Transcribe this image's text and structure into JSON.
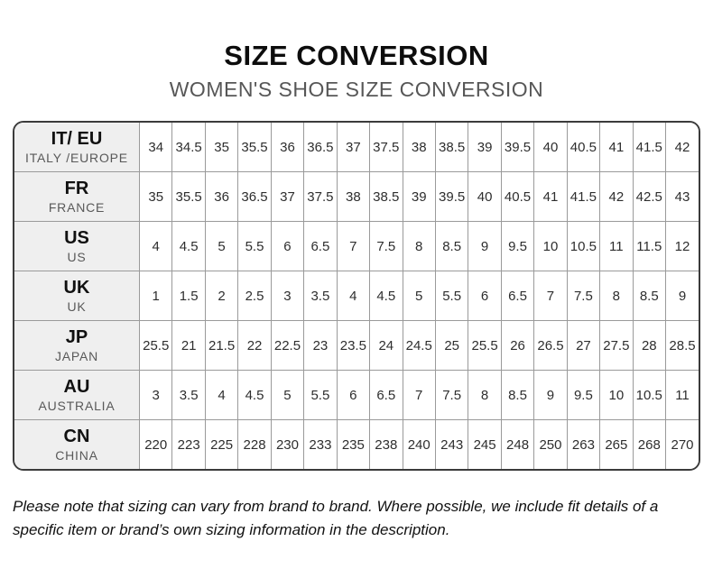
{
  "header": {
    "title": "SIZE CONVERSION",
    "subtitle": "WOMEN'S SHOE SIZE CONVERSION"
  },
  "table": {
    "rows": [
      {
        "code": "IT/ EU",
        "region": "ITALY /EUROPE",
        "sizes": [
          "34",
          "34.5",
          "35",
          "35.5",
          "36",
          "36.5",
          "37",
          "37.5",
          "38",
          "38.5",
          "39",
          "39.5",
          "40",
          "40.5",
          "41",
          "41.5",
          "42"
        ]
      },
      {
        "code": "FR",
        "region": "FRANCE",
        "sizes": [
          "35",
          "35.5",
          "36",
          "36.5",
          "37",
          "37.5",
          "38",
          "38.5",
          "39",
          "39.5",
          "40",
          "40.5",
          "41",
          "41.5",
          "42",
          "42.5",
          "43"
        ]
      },
      {
        "code": "US",
        "region": "US",
        "sizes": [
          "4",
          "4.5",
          "5",
          "5.5",
          "6",
          "6.5",
          "7",
          "7.5",
          "8",
          "8.5",
          "9",
          "9.5",
          "10",
          "10.5",
          "11",
          "11.5",
          "12"
        ]
      },
      {
        "code": "UK",
        "region": "UK",
        "sizes": [
          "1",
          "1.5",
          "2",
          "2.5",
          "3",
          "3.5",
          "4",
          "4.5",
          "5",
          "5.5",
          "6",
          "6.5",
          "7",
          "7.5",
          "8",
          "8.5",
          "9"
        ]
      },
      {
        "code": "JP",
        "region": "JAPAN",
        "sizes": [
          "25.5",
          "21",
          "21.5",
          "22",
          "22.5",
          "23",
          "23.5",
          "24",
          "24.5",
          "25",
          "25.5",
          "26",
          "26.5",
          "27",
          "27.5",
          "28",
          "28.5"
        ]
      },
      {
        "code": "AU",
        "region": "AUSTRALIA",
        "sizes": [
          "3",
          "3.5",
          "4",
          "4.5",
          "5",
          "5.5",
          "6",
          "6.5",
          "7",
          "7.5",
          "8",
          "8.5",
          "9",
          "9.5",
          "10",
          "10.5",
          "11"
        ]
      },
      {
        "code": "CN",
        "region": "CHINA",
        "sizes": [
          "220",
          "223",
          "225",
          "228",
          "230",
          "233",
          "235",
          "238",
          "240",
          "243",
          "245",
          "248",
          "250",
          "263",
          "265",
          "268",
          "270"
        ]
      }
    ]
  },
  "note": {
    "text": "Please note that sizing can vary from brand to brand. Where possible, we include fit details of a specific item or brand’s own sizing information in the description."
  },
  "colors": {
    "header_cell_bg": "#efefef",
    "outer_border": "#3b3b3b",
    "inner_border": "#9a9a9a",
    "title_text": "#0d0d0d",
    "subtitle_text": "#575757"
  }
}
